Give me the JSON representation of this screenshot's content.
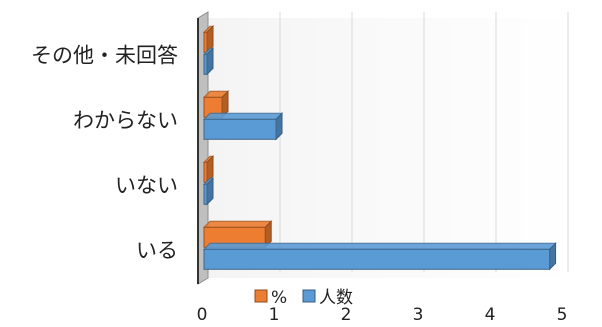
{
  "chart_data": {
    "type": "bar",
    "orientation": "horizontal",
    "title": "",
    "xlabel": "",
    "ylabel": "",
    "categories": [
      "いる",
      "いない",
      "わからない",
      "その他・未回答"
    ],
    "series": [
      {
        "name": "人数",
        "values": [
          4.8,
          0,
          1,
          0
        ],
        "color": "#5b9bd5"
      },
      {
        "name": "%",
        "values": [
          0.85,
          0,
          0.25,
          0
        ],
        "color": "#ed7d31"
      }
    ],
    "xlim": [
      0,
      5
    ],
    "xticks": [
      "0",
      "1",
      "2",
      "3",
      "4",
      "5"
    ],
    "grid": true,
    "legend_position": "bottom",
    "style": "3d"
  }
}
